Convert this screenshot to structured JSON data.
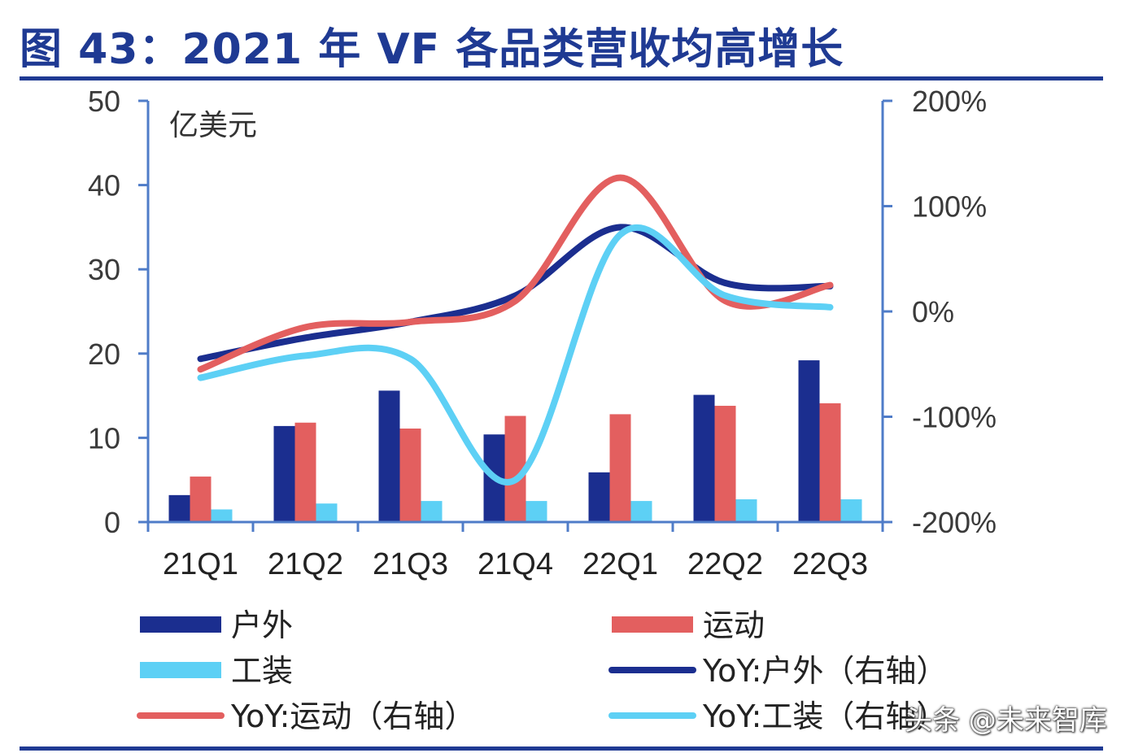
{
  "title": "图 43：2021 年 VF 各品类营收均高增长",
  "watermark": "头条 @未来智库",
  "chart_data": {
    "type": "bar",
    "unit_label": "亿美元",
    "categories": [
      "21Q1",
      "21Q2",
      "21Q3",
      "21Q4",
      "22Q1",
      "22Q2",
      "22Q3"
    ],
    "y_left": {
      "min": 0,
      "max": 50,
      "ticks": [
        "0",
        "10",
        "20",
        "30",
        "40",
        "50"
      ]
    },
    "y_right": {
      "min": -200,
      "max": 200,
      "ticks": [
        "-200%",
        "-100%",
        "0%",
        "100%",
        "200%"
      ]
    },
    "bars": [
      {
        "name": "户外",
        "color": "#1b2e8f",
        "values": [
          3.2,
          11.4,
          15.6,
          10.4,
          5.9,
          15.1,
          19.2
        ]
      },
      {
        "name": "运动",
        "color": "#e35f5f",
        "values": [
          5.4,
          11.8,
          11.1,
          12.6,
          12.8,
          13.8,
          14.1
        ]
      },
      {
        "name": "工装",
        "color": "#5dd0f5",
        "values": [
          1.5,
          2.2,
          2.5,
          2.5,
          2.5,
          2.7,
          2.7
        ]
      }
    ],
    "lines": [
      {
        "name": "YoY:户外（右轴）",
        "color": "#1b2e8f",
        "values": [
          -45,
          -25,
          -10,
          15,
          80,
          27,
          24
        ]
      },
      {
        "name": "YoY:运动（右轴）",
        "color": "#e35f5f",
        "values": [
          -55,
          -15,
          -10,
          10,
          127,
          10,
          25
        ]
      },
      {
        "name": "YoY:工装（右轴）",
        "color": "#5dd0f5",
        "values": [
          -63,
          -42,
          -45,
          -160,
          73,
          15,
          4
        ]
      }
    ],
    "legend": {
      "position": "bottom"
    }
  }
}
